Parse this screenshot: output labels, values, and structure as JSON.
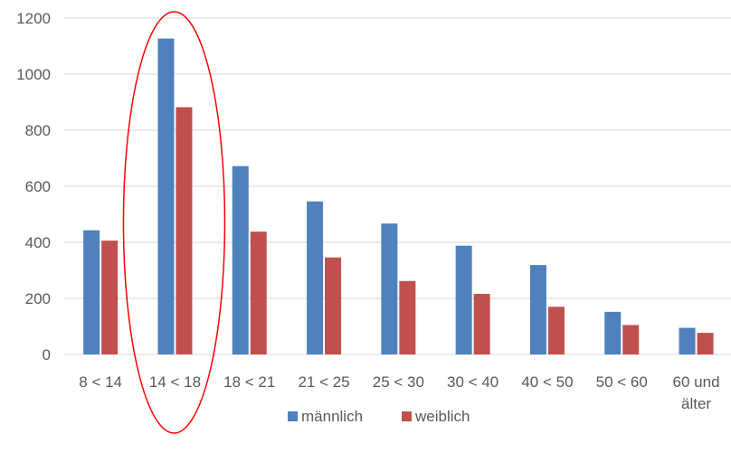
{
  "chart_data": {
    "type": "bar",
    "categories": [
      "8 < 14",
      "14 < 18",
      "18 < 21",
      "21 < 25",
      "25 < 30",
      "30 < 40",
      "40 < 50",
      "50 < 60",
      "60 und älter"
    ],
    "category_lines": [
      [
        "8 < 14"
      ],
      [
        "14 < 18"
      ],
      [
        "18 < 21"
      ],
      [
        "21 < 25"
      ],
      [
        "25 < 30"
      ],
      [
        "30 < 40"
      ],
      [
        "40 < 50"
      ],
      [
        "50 < 60"
      ],
      [
        "60 und",
        "älter"
      ]
    ],
    "series": [
      {
        "name": "männlich",
        "color": "#4F81BD",
        "values": [
          443,
          1127,
          672,
          546,
          467,
          388,
          319,
          152,
          95
        ]
      },
      {
        "name": "weiblich",
        "color": "#C0504D",
        "values": [
          406,
          882,
          438,
          346,
          262,
          216,
          170,
          105,
          77
        ]
      }
    ],
    "ylim": [
      0,
      1200
    ],
    "yticks": [
      0,
      200,
      400,
      600,
      800,
      1000,
      1200
    ],
    "grid": true,
    "legend": "bottom",
    "annotation": {
      "shape": "ellipse",
      "color": "#FF0000",
      "highlight_category": "14 < 18"
    }
  }
}
